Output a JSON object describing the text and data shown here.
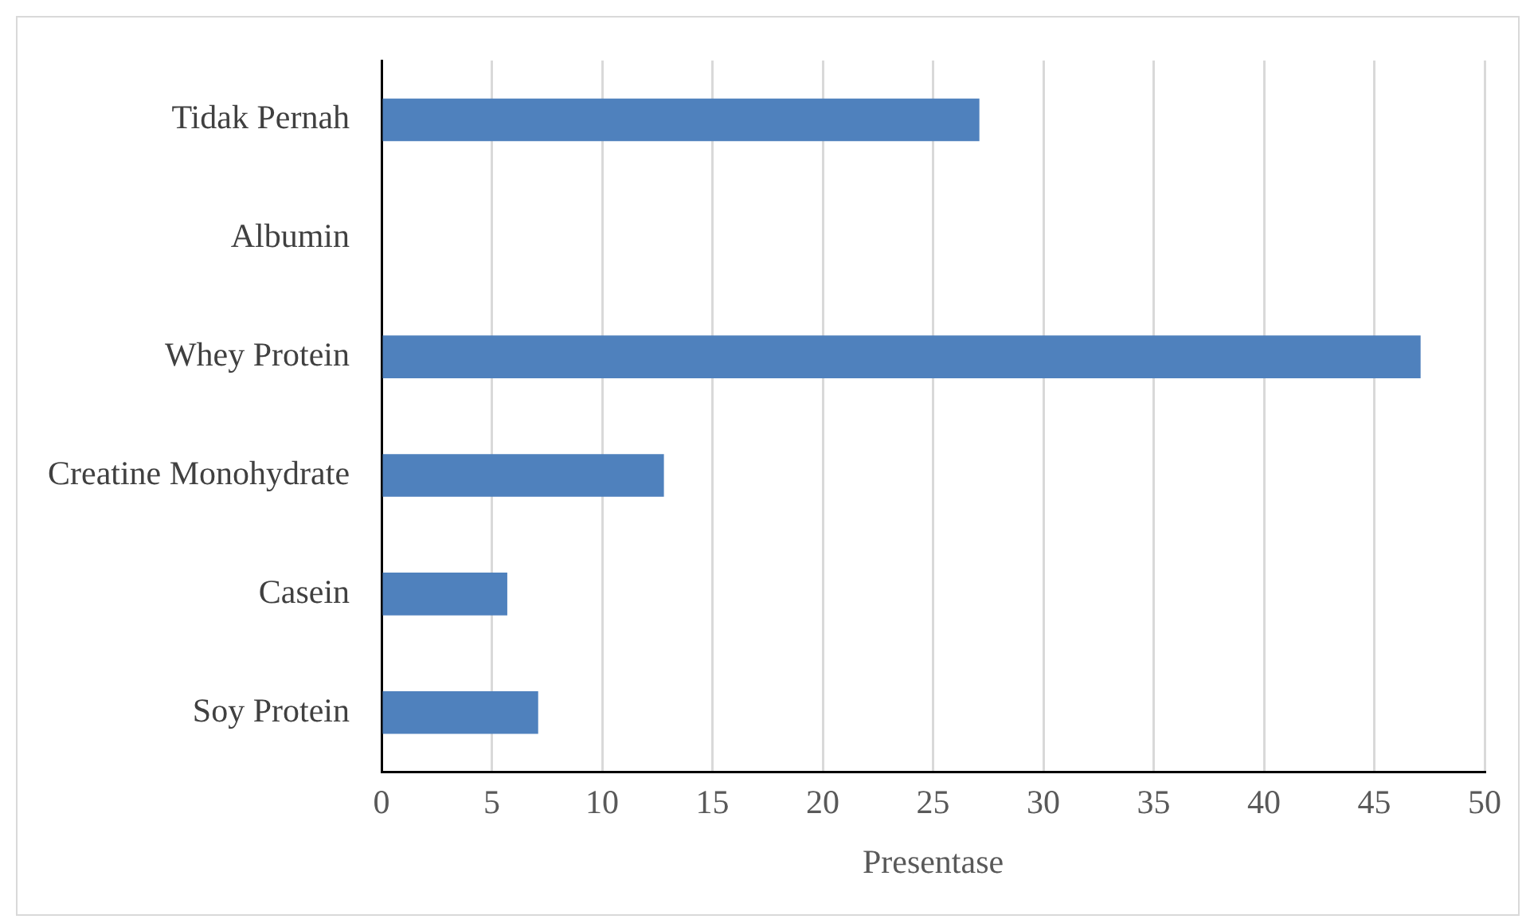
{
  "chart_data": {
    "type": "bar",
    "orientation": "horizontal",
    "categories": [
      "Tidak Pernah",
      "Albumin",
      "Whey Protein",
      "Creatine Monohydrate",
      "Casein",
      "Soy Protein"
    ],
    "values": [
      27.1,
      0,
      47.1,
      12.8,
      5.7,
      7.1
    ],
    "color": "#4f81bd",
    "xlabel": "Presentase",
    "xlim": [
      0,
      50
    ],
    "xticks": [
      0,
      5,
      10,
      15,
      20,
      25,
      30,
      35,
      40,
      45,
      50
    ],
    "grid": "x",
    "legend": false
  }
}
